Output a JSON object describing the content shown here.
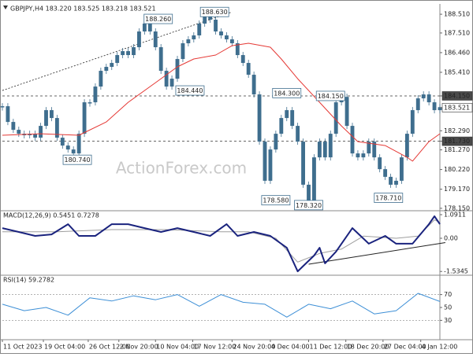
{
  "watermark": "ActionForex.com",
  "chart_data": [
    {
      "type": "line",
      "title": "GBPJPY,H4 183.220 183.525 183.218 183.521",
      "xlim": [
        0,
        80
      ],
      "ylim": [
        178.02,
        189.06
      ],
      "yticks": [
        {
          "value": 188.51,
          "label": "188.510"
        },
        {
          "value": 187.51,
          "label": "187.510"
        },
        {
          "value": 186.46,
          "label": "186.460"
        },
        {
          "value": 185.41,
          "label": "185.410"
        },
        {
          "value": 184.15,
          "label": "184.150",
          "highlight": "dark"
        },
        {
          "value": 183.521,
          "label": "183.521",
          "highlight": "light"
        },
        {
          "value": 182.29,
          "label": "182.290"
        },
        {
          "value": 181.73,
          "label": "181.730",
          "highlight": "dark"
        },
        {
          "value": 181.27,
          "label": "181.270"
        },
        {
          "value": 180.22,
          "label": "180.220"
        },
        {
          "value": 179.17,
          "label": "179.170"
        },
        {
          "value": 178.15,
          "label": "178.150"
        }
      ],
      "hlines": [
        184.15,
        181.73
      ],
      "trendline": {
        "x": [
          0,
          42
        ],
        "values": [
          184.44,
          188.63
        ]
      },
      "series": [
        {
          "style": "bars",
          "color": "#3f6e8e",
          "values": [
            183.6,
            182.76,
            182.34,
            182.13,
            182.05,
            182.13,
            181.92,
            182.55,
            183.39,
            182.97,
            181.92,
            181.5,
            181.29,
            181.08,
            182.13,
            183.81,
            183.81,
            184.65,
            185.49,
            185.7,
            185.91,
            186.33,
            186.54,
            186.33,
            186.75,
            187.59,
            188.01,
            187.59,
            186.75,
            185.49,
            184.65,
            185.07,
            186.12,
            186.96,
            187.17,
            187.38,
            188.01,
            188.51,
            188.22,
            187.59,
            187.38,
            187.17,
            186.96,
            186.33,
            185.91,
            185.28,
            184.23,
            181.71,
            179.62,
            181.29,
            182.13,
            182.97,
            183.39,
            182.55,
            181.71,
            179.41,
            178.57,
            180.87,
            181.71,
            180.87,
            182.13,
            183.81,
            184.1,
            182.55,
            181.08,
            180.87,
            181.08,
            181.71,
            180.87,
            180.24,
            179.83,
            179.41,
            179.62,
            180.87,
            182.13,
            183.39,
            184.02,
            184.23,
            183.81,
            183.39,
            183.55
          ]
        },
        {
          "color": "#e53935",
          "width": 1,
          "x": [
            0,
            7,
            14,
            19,
            23,
            28,
            32,
            35,
            39,
            42,
            45,
            49,
            51,
            54,
            58,
            62,
            65,
            70,
            74,
            75,
            78,
            80
          ],
          "values": [
            182.05,
            182.13,
            182.05,
            182.76,
            183.81,
            184.86,
            185.7,
            186.12,
            186.33,
            186.83,
            186.96,
            186.75,
            186.12,
            185.07,
            183.81,
            182.55,
            181.71,
            181.5,
            180.87,
            180.67,
            181.71,
            182.13
          ]
        }
      ],
      "annotations": [
        {
          "label": "188.260",
          "value": 188.26,
          "x": 28.5
        },
        {
          "label": "188.630",
          "value": 188.63,
          "x": 38.8
        },
        {
          "label": "184.440",
          "value": 184.44,
          "x": 34.3
        },
        {
          "label": "184.300",
          "value": 184.3,
          "x": 52
        },
        {
          "label": "184.150",
          "value": 184.15,
          "x": 60
        },
        {
          "label": "180.740",
          "value": 180.74,
          "x": 13.7
        },
        {
          "label": "178.580",
          "value": 178.58,
          "x": 50
        },
        {
          "label": "178.320",
          "value": 178.32,
          "x": 56
        },
        {
          "label": "178.710",
          "value": 178.71,
          "x": 70.6
        }
      ]
    },
    {
      "type": "line",
      "title": "MACD(12,26,9) 0.5451 0.7278",
      "xlim": [
        0,
        80
      ],
      "ylim": [
        -1.709,
        1.273
      ],
      "yticks": [
        1.0911,
        {
          "value": 0,
          "label": "0.00"
        },
        -1.5345
      ],
      "trendline": {
        "x": [
          56,
          81
        ],
        "values": [
          -1.2,
          -0.2
        ]
      },
      "series": [
        {
          "color": "#9e9e9e",
          "width": 1,
          "x": [
            0,
            10,
            20,
            30,
            40,
            45,
            50,
            54,
            58,
            62,
            66,
            72,
            76,
            79,
            80
          ],
          "values": [
            0.3,
            0.3,
            0.4,
            0.4,
            0.3,
            0.3,
            0.0,
            -1.1,
            -0.7,
            -0.5,
            0.1,
            0.0,
            0.1,
            0.85,
            0.73
          ]
        },
        {
          "color": "#1a237e",
          "width": 2,
          "x": [
            0,
            3,
            6,
            9,
            12,
            14,
            17,
            20,
            23,
            26,
            29,
            32,
            35,
            38,
            41,
            43,
            46,
            49,
            52,
            54,
            57,
            58,
            59,
            61,
            64,
            67,
            70,
            72,
            75,
            78,
            79,
            80
          ],
          "values": [
            0.47,
            0.29,
            0.11,
            0.18,
            0.65,
            0.11,
            0.11,
            0.65,
            0.65,
            0.47,
            0.29,
            0.47,
            0.29,
            0.11,
            0.65,
            0.11,
            0.29,
            0.11,
            -0.44,
            -1.53,
            -0.8,
            -0.44,
            -1.16,
            -0.62,
            0.47,
            -0.25,
            0.11,
            -0.25,
            -0.25,
            0.65,
            1.02,
            0.65
          ]
        }
      ]
    },
    {
      "type": "line",
      "title": "RSI(14) 59.2782",
      "xlim": [
        0,
        80
      ],
      "ylim": [
        0,
        100
      ],
      "yticks": [
        70,
        50,
        30
      ],
      "levels": [
        70,
        30
      ],
      "series": [
        {
          "color": "#3d8fd6",
          "width": 1,
          "x": [
            0,
            4,
            8,
            12,
            16,
            20,
            24,
            28,
            32,
            36,
            40,
            44,
            48,
            52,
            56,
            60,
            64,
            68,
            72,
            76,
            80
          ],
          "values": [
            55,
            45,
            50,
            38,
            65,
            60,
            68,
            62,
            70,
            52,
            70,
            58,
            55,
            35,
            55,
            48,
            60,
            40,
            45,
            72,
            59.2782
          ]
        }
      ],
      "xticks": [
        {
          "value": 0,
          "label": "11 Oct 2023"
        },
        {
          "value": 7.5,
          "label": "19 Oct 04:00"
        },
        {
          "value": 15.7,
          "label": "26 Oct 12:00"
        },
        {
          "value": 21.3,
          "label": "2 Nov 20:00"
        },
        {
          "value": 28,
          "label": "10 Nov 04:00"
        },
        {
          "value": 34.8,
          "label": "17 Nov 12:00"
        },
        {
          "value": 42,
          "label": "24 Nov 20:00"
        },
        {
          "value": 49,
          "label": "4 Dec 04:00"
        },
        {
          "value": 56,
          "label": "11 Dec 12:00"
        },
        {
          "value": 62.8,
          "label": "18 Dec 20:00"
        },
        {
          "value": 69.6,
          "label": "27 Dec 04:00"
        },
        {
          "value": 76.5,
          "label": "4 Jan 12:00"
        }
      ]
    }
  ]
}
